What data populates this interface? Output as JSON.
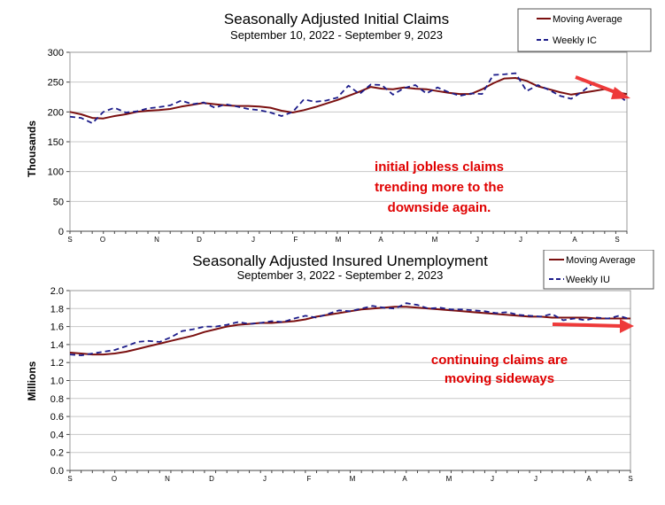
{
  "chart_data": [
    {
      "type": "line",
      "title": "Seasonally Adjusted Initial Claims",
      "subtitle": "September 10, 2022 - September 9, 2023",
      "ylabel": "Thousands",
      "xlabel": "",
      "ylim": [
        0,
        300
      ],
      "yticks": [
        "0",
        "50",
        "100",
        "150",
        "200",
        "250",
        "300"
      ],
      "xtick_labels": [
        "S",
        "O",
        "N",
        "D",
        "J",
        "F",
        "M",
        "A",
        "M",
        "J",
        "J",
        "A",
        "S"
      ],
      "grid": true,
      "legend_position": "top-right",
      "series": [
        {
          "name": "Moving Average",
          "style": "solid",
          "color": "#7b1010",
          "values": [
            200,
            196,
            190,
            189,
            193,
            196,
            200,
            202,
            203,
            205,
            209,
            212,
            215,
            213,
            211,
            210,
            210,
            209,
            207,
            202,
            199,
            203,
            208,
            214,
            220,
            227,
            234,
            242,
            239,
            238,
            241,
            239,
            238,
            235,
            232,
            230,
            230,
            238,
            248,
            256,
            257,
            252,
            243,
            238,
            233,
            229,
            232,
            235,
            238,
            233,
            230
          ]
        },
        {
          "name": "Weekly IC",
          "style": "dashed",
          "color": "#1c1c8a",
          "values": [
            192,
            190,
            181,
            200,
            207,
            199,
            201,
            206,
            208,
            211,
            219,
            213,
            216,
            207,
            213,
            209,
            205,
            203,
            199,
            193,
            200,
            221,
            217,
            219,
            224,
            244,
            230,
            246,
            245,
            229,
            240,
            245,
            231,
            241,
            233,
            227,
            231,
            230,
            262,
            263,
            265,
            235,
            245,
            237,
            227,
            222,
            234,
            249,
            239,
            231,
            217
          ]
        }
      ],
      "annotation": {
        "lines": [
          "initial jobless claims",
          "trending more to the",
          "downside again."
        ],
        "color": "#e00000"
      },
      "arrow_color": "#ee3a3a"
    },
    {
      "type": "line",
      "title": "Seasonally Adjusted Insured Unemployment",
      "subtitle": "September 3, 2022 - September 2, 2023",
      "ylabel": "Millions",
      "xlabel": "",
      "ylim": [
        0,
        2
      ],
      "yticks": [
        "0.0",
        "0.2",
        "0.4",
        "0.6",
        "0.8",
        "1.0",
        "1.2",
        "1.4",
        "1.6",
        "1.8",
        "2.0"
      ],
      "xtick_labels": [
        "S",
        "O",
        "N",
        "D",
        "J",
        "F",
        "M",
        "A",
        "M",
        "J",
        "J",
        "A",
        "S"
      ],
      "grid": true,
      "legend_position": "top-right",
      "series": [
        {
          "name": "Moving Average",
          "style": "solid",
          "color": "#7b1010",
          "values": [
            1.31,
            1.3,
            1.29,
            1.29,
            1.3,
            1.32,
            1.35,
            1.38,
            1.41,
            1.44,
            1.47,
            1.5,
            1.54,
            1.57,
            1.6,
            1.62,
            1.63,
            1.64,
            1.64,
            1.65,
            1.66,
            1.68,
            1.71,
            1.73,
            1.75,
            1.77,
            1.79,
            1.8,
            1.81,
            1.82,
            1.82,
            1.81,
            1.8,
            1.79,
            1.78,
            1.77,
            1.76,
            1.75,
            1.74,
            1.73,
            1.72,
            1.71,
            1.71,
            1.7,
            1.7,
            1.7,
            1.7,
            1.69,
            1.69,
            1.69,
            1.69
          ]
        },
        {
          "name": "Weekly IU",
          "style": "dashed",
          "color": "#1c1c8a",
          "values": [
            1.29,
            1.28,
            1.3,
            1.32,
            1.34,
            1.38,
            1.43,
            1.44,
            1.43,
            1.48,
            1.55,
            1.57,
            1.6,
            1.6,
            1.62,
            1.65,
            1.63,
            1.64,
            1.66,
            1.65,
            1.69,
            1.72,
            1.7,
            1.74,
            1.78,
            1.77,
            1.8,
            1.83,
            1.81,
            1.8,
            1.86,
            1.84,
            1.8,
            1.81,
            1.79,
            1.79,
            1.78,
            1.77,
            1.75,
            1.76,
            1.73,
            1.72,
            1.71,
            1.74,
            1.67,
            1.69,
            1.67,
            1.7,
            1.69,
            1.72,
            1.68
          ]
        }
      ],
      "annotation": {
        "lines": [
          "continuing claims are",
          "moving sideways"
        ],
        "color": "#e00000"
      },
      "arrow_color": "#ee3a3a"
    }
  ]
}
